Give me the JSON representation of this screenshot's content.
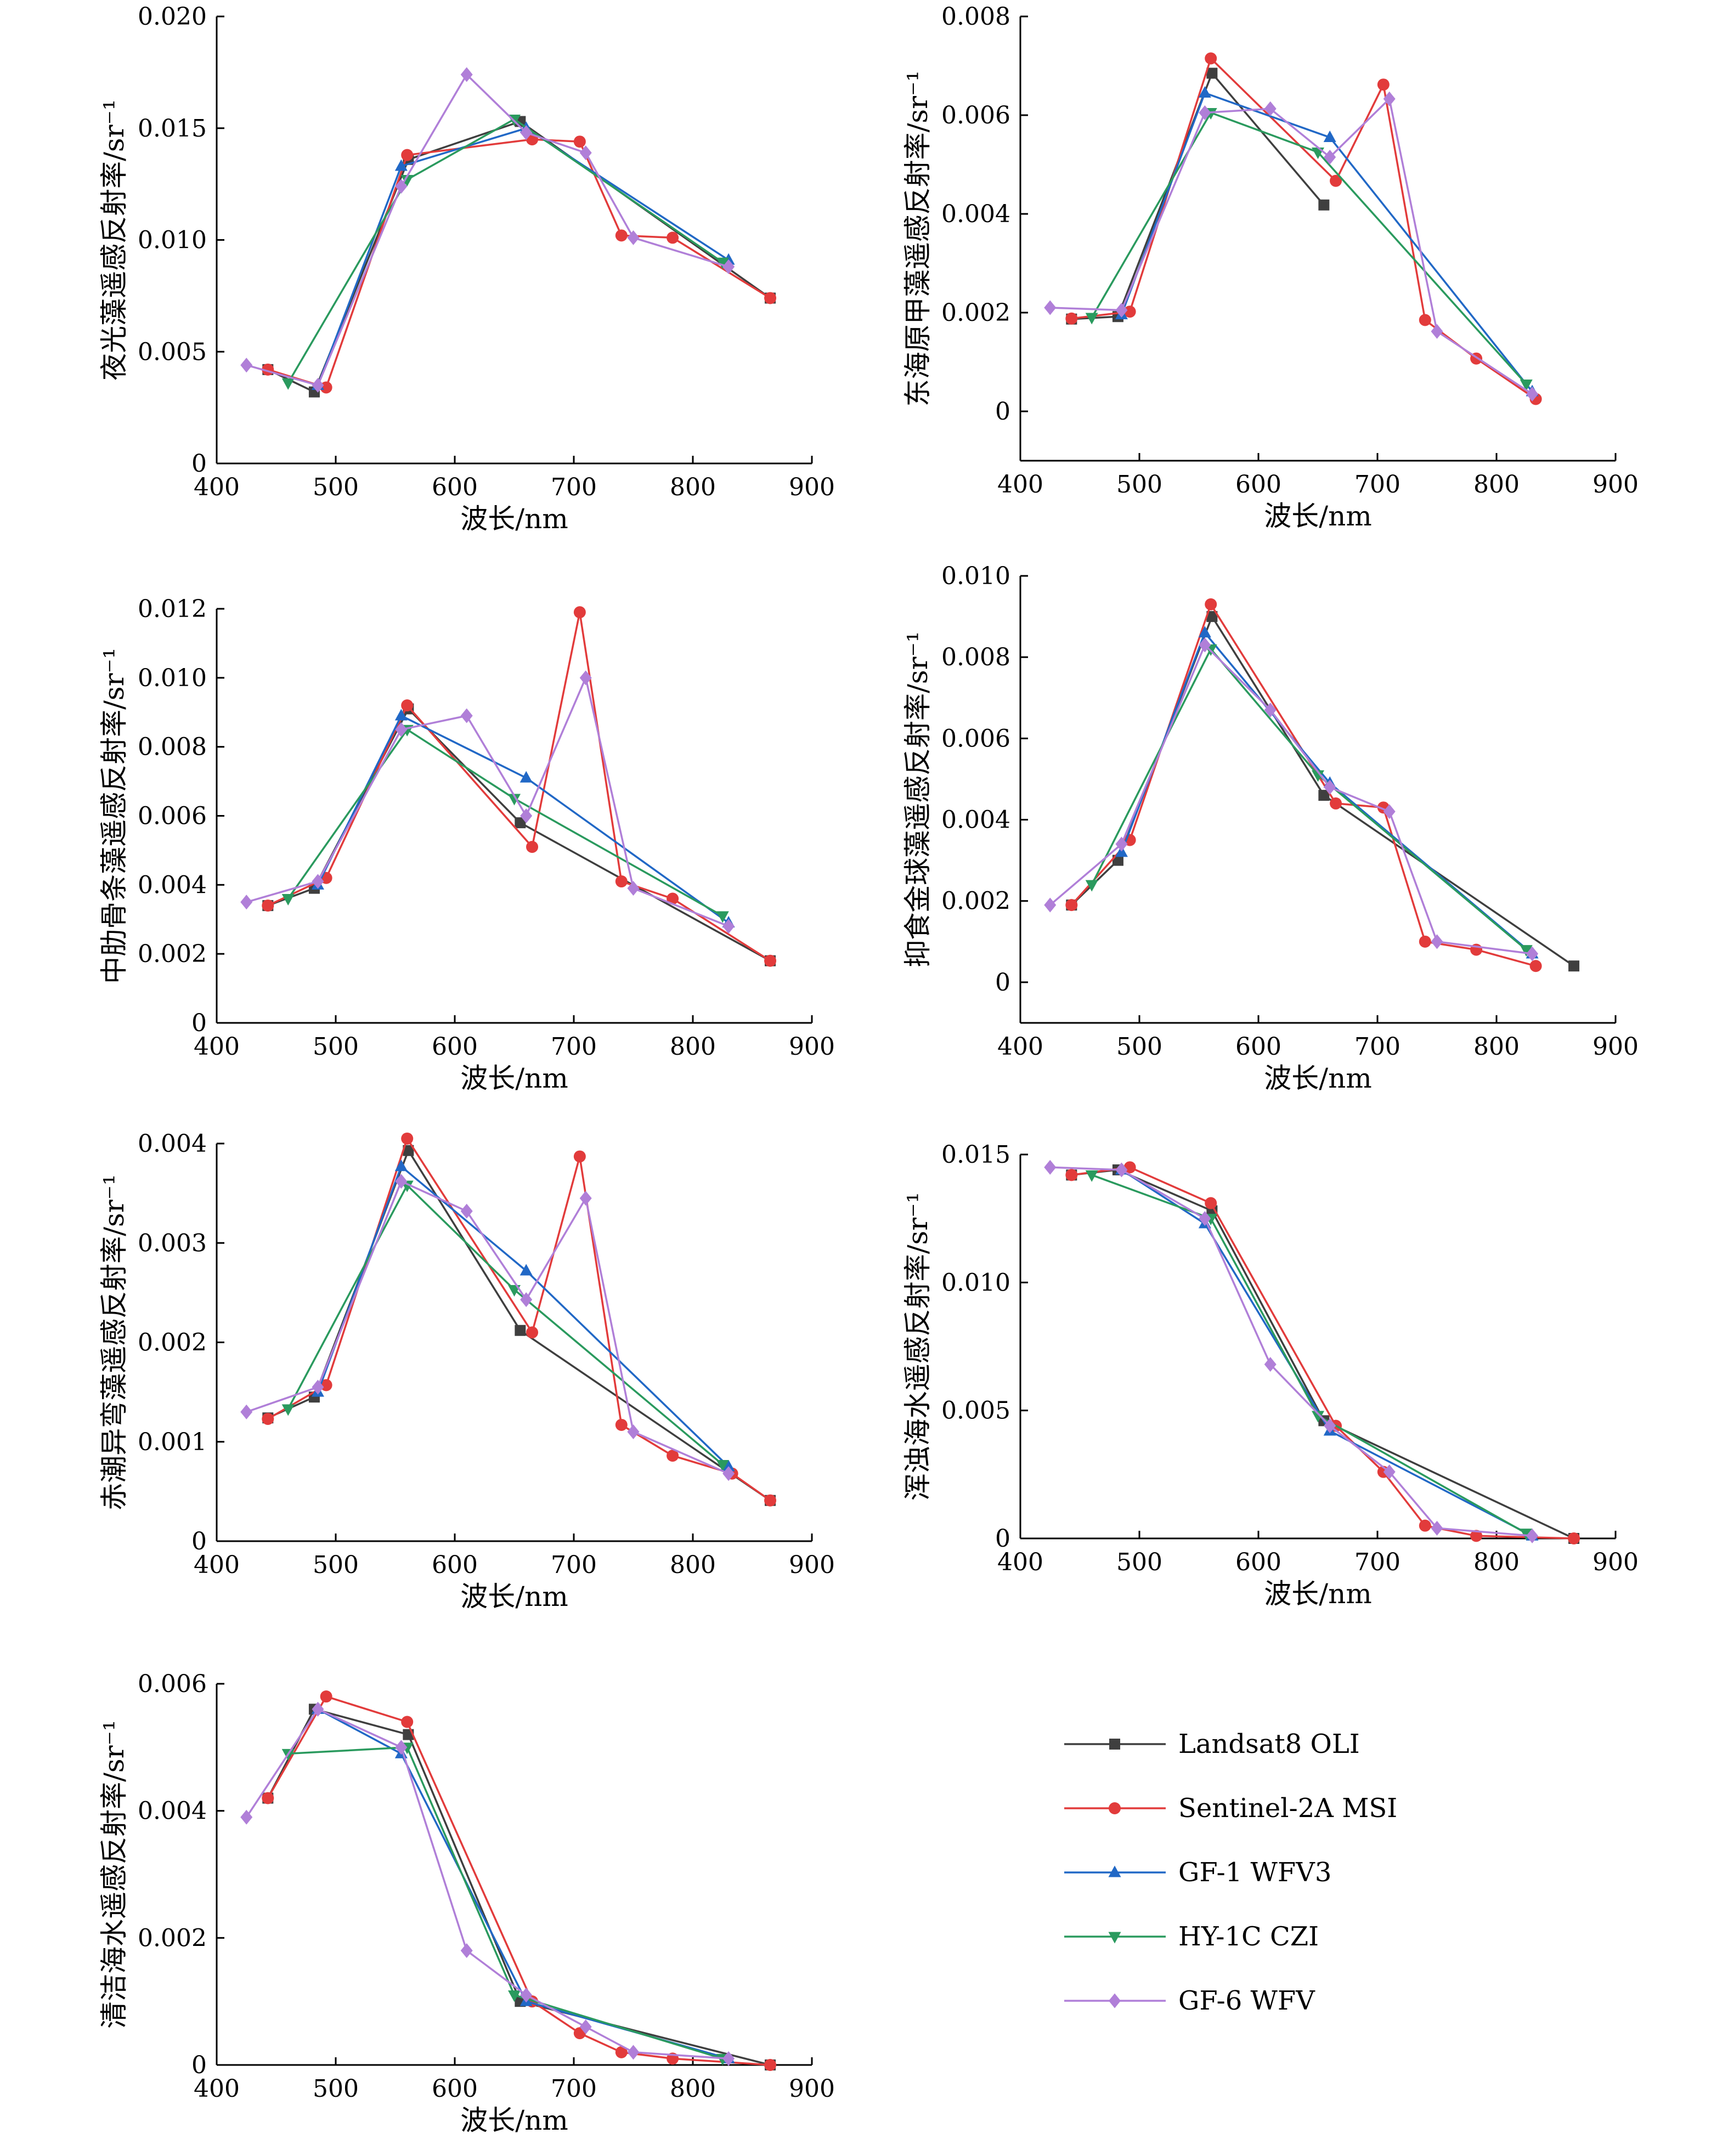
{
  "series_styles": [
    {
      "name": "Landsat8 OLI",
      "color": "#3f3f3f",
      "marker": "square"
    },
    {
      "name": "Sentinel-2A MSI",
      "color": "#e23b3b",
      "marker": "circle"
    },
    {
      "name": "GF-1 WFV3",
      "color": "#2168c6",
      "marker": "triangle-up"
    },
    {
      "name": "HY-1C CZI",
      "color": "#2a9a5e",
      "marker": "triangle-down"
    },
    {
      "name": "GF-6 WFV",
      "color": "#b07fd8",
      "marker": "diamond"
    }
  ],
  "chart_data": [
    {
      "type": "line",
      "xlabel": "波长/nm",
      "ylabel": "夜光藻遥感反射率/sr⁻¹",
      "xlim": [
        400,
        900
      ],
      "ylim": [
        0,
        0.02
      ],
      "xticks": [
        400,
        500,
        600,
        700,
        800,
        900
      ],
      "yticks": [
        0,
        0.005,
        0.01,
        0.015,
        0.02
      ],
      "ytick_labels": [
        "0",
        "0.005",
        "0.010",
        "0.015",
        "0.020"
      ],
      "series": [
        {
          "name": "Landsat8 OLI",
          "x": [
            443,
            482,
            561,
            655,
            865
          ],
          "y": [
            0.0042,
            0.0032,
            0.0136,
            0.0153,
            0.0074
          ]
        },
        {
          "name": "Sentinel-2A MSI",
          "x": [
            443,
            492,
            560,
            665,
            705,
            740,
            783,
            865
          ],
          "y": [
            0.0042,
            0.0034,
            0.0138,
            0.0145,
            0.0144,
            0.0102,
            0.0101,
            0.0074
          ]
        },
        {
          "name": "GF-1 WFV3",
          "x": [
            485,
            555,
            660,
            830
          ],
          "y": [
            0.0035,
            0.0133,
            0.015,
            0.0091
          ]
        },
        {
          "name": "HY-1C CZI",
          "x": [
            460,
            560,
            650,
            825
          ],
          "y": [
            0.0036,
            0.0127,
            0.0154,
            0.009
          ]
        },
        {
          "name": "GF-6 WFV",
          "x": [
            425,
            485,
            555,
            610,
            660,
            710,
            750,
            830
          ],
          "y": [
            0.0044,
            0.0035,
            0.0124,
            0.0174,
            0.0148,
            0.0139,
            0.0101,
            0.0088
          ]
        }
      ]
    },
    {
      "type": "line",
      "xlabel": "波长/nm",
      "ylabel": "东海原甲藻遥感反射率/sr⁻¹",
      "xlim": [
        400,
        900
      ],
      "ylim": [
        -0.001,
        0.008
      ],
      "xticks": [
        400,
        500,
        600,
        700,
        800,
        900
      ],
      "yticks": [
        0,
        0.002,
        0.004,
        0.006,
        0.008
      ],
      "ytick_labels": [
        "0",
        "0.002",
        "0.004",
        "0.006",
        "0.008"
      ],
      "series": [
        {
          "name": "Landsat8 OLI",
          "x": [
            443,
            482,
            561,
            655
          ],
          "y": [
            0.00187,
            0.00192,
            0.00685,
            0.00418
          ]
        },
        {
          "name": "Sentinel-2A MSI",
          "x": [
            443,
            492,
            560,
            665,
            705,
            740,
            783,
            833
          ],
          "y": [
            0.00188,
            0.00202,
            0.00715,
            0.00467,
            0.00662,
            0.00185,
            0.00107,
            0.00025
          ]
        },
        {
          "name": "GF-1 WFV3",
          "x": [
            485,
            555,
            660,
            830
          ],
          "y": [
            0.00196,
            0.00645,
            0.00555,
            0.0004
          ]
        },
        {
          "name": "HY-1C CZI",
          "x": [
            460,
            560,
            650,
            825
          ],
          "y": [
            0.0019,
            0.00605,
            0.00525,
            0.00055
          ]
        },
        {
          "name": "GF-6 WFV",
          "x": [
            425,
            485,
            555,
            610,
            660,
            710,
            750,
            830
          ],
          "y": [
            0.0021,
            0.00205,
            0.00605,
            0.00613,
            0.00515,
            0.00633,
            0.00162,
            0.00035
          ]
        }
      ]
    },
    {
      "type": "line",
      "xlabel": "波长/nm",
      "ylabel": "中肋骨条藻遥感反射率/sr⁻¹",
      "xlim": [
        400,
        900
      ],
      "ylim": [
        0,
        0.012
      ],
      "xticks": [
        400,
        500,
        600,
        700,
        800,
        900
      ],
      "yticks": [
        0,
        0.002,
        0.004,
        0.006,
        0.008,
        0.01,
        0.012
      ],
      "ytick_labels": [
        "0",
        "0.002",
        "0.004",
        "0.006",
        "0.008",
        "0.010",
        "0.012"
      ],
      "series": [
        {
          "name": "Landsat8 OLI",
          "x": [
            443,
            482,
            561,
            655,
            865
          ],
          "y": [
            0.0034,
            0.0039,
            0.0091,
            0.0058,
            0.0018
          ]
        },
        {
          "name": "Sentinel-2A MSI",
          "x": [
            443,
            492,
            560,
            665,
            705,
            740,
            783,
            865
          ],
          "y": [
            0.0034,
            0.0042,
            0.0092,
            0.0051,
            0.0119,
            0.0041,
            0.0036,
            0.0018
          ]
        },
        {
          "name": "GF-1 WFV3",
          "x": [
            485,
            555,
            660,
            830
          ],
          "y": [
            0.004,
            0.0089,
            0.0071,
            0.0029
          ]
        },
        {
          "name": "HY-1C CZI",
          "x": [
            460,
            560,
            650,
            825
          ],
          "y": [
            0.0036,
            0.0085,
            0.0065,
            0.0031
          ]
        },
        {
          "name": "GF-6 WFV",
          "x": [
            425,
            485,
            555,
            610,
            660,
            710,
            750,
            830
          ],
          "y": [
            0.0035,
            0.0041,
            0.0085,
            0.0089,
            0.006,
            0.01,
            0.0039,
            0.0028
          ]
        }
      ]
    },
    {
      "type": "line",
      "xlabel": "波长/nm",
      "ylabel": "抑食金球藻遥感反射率/sr⁻¹",
      "xlim": [
        400,
        900
      ],
      "ylim": [
        -0.001,
        0.01
      ],
      "xticks": [
        400,
        500,
        600,
        700,
        800,
        900
      ],
      "yticks": [
        0,
        0.002,
        0.004,
        0.006,
        0.008,
        0.01
      ],
      "ytick_labels": [
        "0",
        "0.002",
        "0.004",
        "0.006",
        "0.008",
        "0.010"
      ],
      "series": [
        {
          "name": "Landsat8 OLI",
          "x": [
            443,
            482,
            561,
            655,
            865
          ],
          "y": [
            0.0019,
            0.003,
            0.009,
            0.0046,
            0.0004
          ]
        },
        {
          "name": "Sentinel-2A MSI",
          "x": [
            443,
            492,
            560,
            665,
            705,
            740,
            783,
            833
          ],
          "y": [
            0.0019,
            0.0035,
            0.0093,
            0.0044,
            0.0043,
            0.001,
            0.0008,
            0.0004
          ]
        },
        {
          "name": "GF-1 WFV3",
          "x": [
            485,
            555,
            660,
            830
          ],
          "y": [
            0.0032,
            0.0086,
            0.0049,
            0.0007
          ]
        },
        {
          "name": "HY-1C CZI",
          "x": [
            460,
            560,
            650,
            825
          ],
          "y": [
            0.0024,
            0.0082,
            0.0051,
            0.0008
          ]
        },
        {
          "name": "GF-6 WFV",
          "x": [
            425,
            485,
            555,
            610,
            660,
            710,
            750,
            830
          ],
          "y": [
            0.0019,
            0.0034,
            0.0083,
            0.0067,
            0.0048,
            0.0042,
            0.001,
            0.0007
          ]
        }
      ]
    },
    {
      "type": "line",
      "xlabel": "波长/nm",
      "ylabel": "赤潮异弯藻遥感反射率/sr⁻¹",
      "xlim": [
        400,
        900
      ],
      "ylim": [
        0,
        0.004
      ],
      "xticks": [
        400,
        500,
        600,
        700,
        800,
        900
      ],
      "yticks": [
        0,
        0.001,
        0.002,
        0.003,
        0.004
      ],
      "ytick_labels": [
        "0",
        "0.001",
        "0.002",
        "0.003",
        "0.004"
      ],
      "series": [
        {
          "name": "Landsat8 OLI",
          "x": [
            443,
            482,
            561,
            655,
            865
          ],
          "y": [
            0.00124,
            0.00145,
            0.00393,
            0.00212,
            0.00041
          ]
        },
        {
          "name": "Sentinel-2A MSI",
          "x": [
            443,
            492,
            560,
            665,
            705,
            740,
            783,
            833,
            865
          ],
          "y": [
            0.00123,
            0.00157,
            0.00405,
            0.0021,
            0.00387,
            0.00117,
            0.00086,
            0.00068,
            0.00041
          ]
        },
        {
          "name": "GF-1 WFV3",
          "x": [
            485,
            555,
            660,
            830
          ],
          "y": [
            0.0015,
            0.00377,
            0.00272,
            0.00075
          ]
        },
        {
          "name": "HY-1C CZI",
          "x": [
            460,
            560,
            650,
            825
          ],
          "y": [
            0.00133,
            0.00358,
            0.00253,
            0.00077
          ]
        },
        {
          "name": "GF-6 WFV",
          "x": [
            425,
            485,
            555,
            610,
            660,
            710,
            750,
            830
          ],
          "y": [
            0.0013,
            0.00155,
            0.00362,
            0.00332,
            0.00243,
            0.00345,
            0.0011,
            0.00068
          ]
        }
      ]
    },
    {
      "type": "line",
      "xlabel": "波长/nm",
      "ylabel": "浑浊海水遥感反射率/sr⁻¹",
      "xlim": [
        400,
        900
      ],
      "ylim": [
        0,
        0.015
      ],
      "xticks": [
        400,
        500,
        600,
        700,
        800,
        900
      ],
      "yticks": [
        0,
        0.005,
        0.01,
        0.015
      ],
      "ytick_labels": [
        "0",
        "0.005",
        "0.010",
        "0.015"
      ],
      "series": [
        {
          "name": "Landsat8 OLI",
          "x": [
            443,
            482,
            561,
            655,
            865
          ],
          "y": [
            0.0142,
            0.0144,
            0.0128,
            0.0046,
            0.0
          ]
        },
        {
          "name": "Sentinel-2A MSI",
          "x": [
            443,
            492,
            560,
            665,
            705,
            740,
            783,
            865
          ],
          "y": [
            0.0142,
            0.0145,
            0.0131,
            0.0044,
            0.0026,
            0.0005,
            0.0001,
            0.0
          ]
        },
        {
          "name": "GF-1 WFV3",
          "x": [
            485,
            555,
            660,
            830
          ],
          "y": [
            0.0144,
            0.0123,
            0.0042,
            0.0001
          ]
        },
        {
          "name": "HY-1C CZI",
          "x": [
            460,
            560,
            650,
            825
          ],
          "y": [
            0.0142,
            0.0125,
            0.0048,
            0.0002
          ]
        },
        {
          "name": "GF-6 WFV",
          "x": [
            425,
            485,
            555,
            610,
            660,
            710,
            750,
            830
          ],
          "y": [
            0.0145,
            0.0144,
            0.0125,
            0.0068,
            0.0044,
            0.0026,
            0.0004,
            0.0001
          ]
        }
      ]
    },
    {
      "type": "line",
      "xlabel": "波长/nm",
      "ylabel": "清洁海水遥感反射率/sr⁻¹",
      "xlim": [
        400,
        900
      ],
      "ylim": [
        0,
        0.006
      ],
      "xticks": [
        400,
        500,
        600,
        700,
        800,
        900
      ],
      "yticks": [
        0,
        0.002,
        0.004,
        0.006
      ],
      "ytick_labels": [
        "0",
        "0.002",
        "0.004",
        "0.006"
      ],
      "series": [
        {
          "name": "Landsat8 OLI",
          "x": [
            443,
            482,
            561,
            655,
            865
          ],
          "y": [
            0.0042,
            0.0056,
            0.0052,
            0.001,
            0.0
          ]
        },
        {
          "name": "Sentinel-2A MSI",
          "x": [
            443,
            492,
            560,
            665,
            705,
            740,
            783,
            865
          ],
          "y": [
            0.0042,
            0.0058,
            0.0054,
            0.001,
            0.0005,
            0.0002,
            0.0001,
            0.0
          ]
        },
        {
          "name": "GF-1 WFV3",
          "x": [
            485,
            555,
            660,
            830
          ],
          "y": [
            0.0056,
            0.0049,
            0.001,
            0.0001
          ]
        },
        {
          "name": "HY-1C CZI",
          "x": [
            460,
            560,
            650,
            825
          ],
          "y": [
            0.0049,
            0.005,
            0.0011,
            0.0001
          ]
        },
        {
          "name": "GF-6 WFV",
          "x": [
            425,
            485,
            555,
            610,
            660,
            710,
            750,
            830
          ],
          "y": [
            0.0039,
            0.0056,
            0.005,
            0.0018,
            0.0011,
            0.0006,
            0.0002,
            0.0001
          ]
        }
      ]
    }
  ]
}
